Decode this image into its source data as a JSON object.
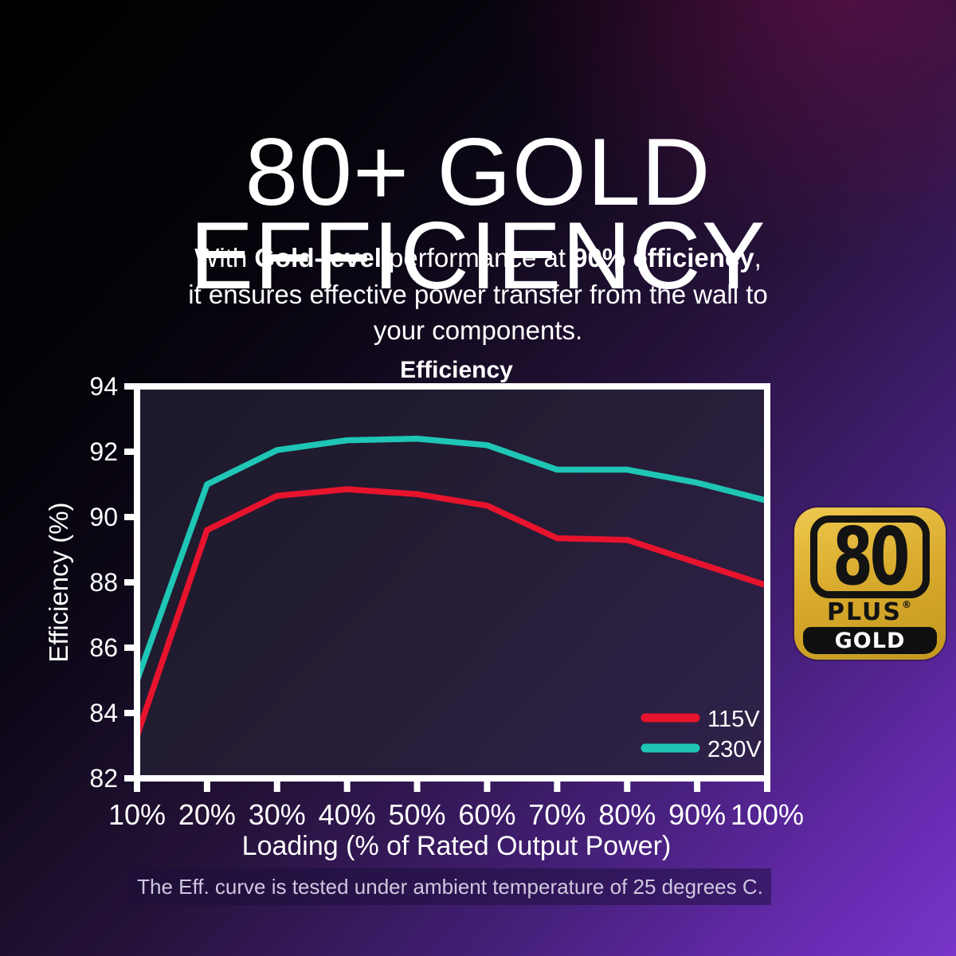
{
  "headline": {
    "line1": "80+ GOLD",
    "line2": "EFFICIENCY"
  },
  "subtitle": {
    "lines": [
      [
        {
          "text": "With ",
          "bold": false
        },
        {
          "text": "Gold-level",
          "bold": true
        },
        {
          "text": " performance at ",
          "bold": false
        },
        {
          "text": "90% efficiency",
          "bold": true
        },
        {
          "text": ",",
          "bold": false
        }
      ],
      [
        {
          "text": "it ensures effective power transfer from the wall to",
          "bold": false
        }
      ],
      [
        {
          "text": "your components.",
          "bold": false
        }
      ]
    ]
  },
  "badge": {
    "number": "80",
    "plus": "PLUS",
    "registered": "®",
    "tier": "GOLD"
  },
  "footnote": {
    "text": "The Eff. curve is tested under ambient temperature of 25 degrees C."
  },
  "palette": {
    "badge_gold": "#d9ab2e",
    "background_purple": "#7835c8",
    "text_white": "#ffffff"
  },
  "chart_data": {
    "type": "line",
    "title": "Efficiency",
    "xlabel": "Loading (% of Rated Output Power)",
    "ylabel": "Efficiency (%)",
    "x": [
      10,
      20,
      30,
      40,
      50,
      60,
      70,
      80,
      90,
      100
    ],
    "x_tick_labels": [
      "10%",
      "20%",
      "30%",
      "40%",
      "50%",
      "60%",
      "70%",
      "80%",
      "90%",
      "100%"
    ],
    "ylim": [
      82,
      94
    ],
    "y_ticks": [
      82,
      84,
      86,
      88,
      90,
      92,
      94
    ],
    "grid": false,
    "legend_position": "inside-bottom-right",
    "series": [
      {
        "name": "115V",
        "color": "#e8132d",
        "values": [
          83.3,
          89.6,
          90.65,
          90.85,
          90.7,
          90.35,
          89.35,
          89.3,
          88.6,
          87.9
        ]
      },
      {
        "name": "230V",
        "color": "#1fc5b5",
        "values": [
          85.0,
          91.0,
          92.05,
          92.35,
          92.4,
          92.2,
          91.45,
          91.45,
          91.05,
          90.5
        ]
      }
    ]
  }
}
